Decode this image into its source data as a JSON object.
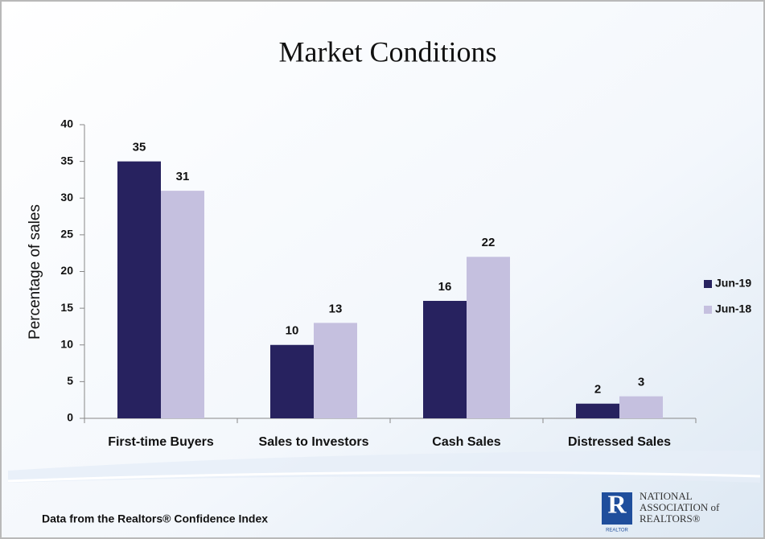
{
  "chart_data": {
    "type": "bar",
    "title": "Market Conditions",
    "ylabel": "Percentage of sales",
    "categories": [
      "First-time Buyers",
      "Sales to Investors",
      "Cash Sales",
      "Distressed Sales"
    ],
    "series": [
      {
        "name": "Jun-19",
        "color": "#27225f",
        "values": [
          35,
          10,
          16,
          2
        ]
      },
      {
        "name": "Jun-18",
        "color": "#c5c0df",
        "values": [
          31,
          13,
          22,
          3
        ]
      }
    ],
    "ylim": [
      0,
      40
    ],
    "yticks": [
      0,
      5,
      10,
      15,
      20,
      25,
      30,
      35,
      40
    ],
    "grid": false,
    "legend": "right"
  },
  "footer": {
    "source": "Data from the Realtors® Confidence Index",
    "logo": {
      "mark": "R",
      "tag": "REALTOR",
      "lines": [
        "NATIONAL",
        "ASSOCIATION of",
        "REALTORS®"
      ]
    }
  }
}
